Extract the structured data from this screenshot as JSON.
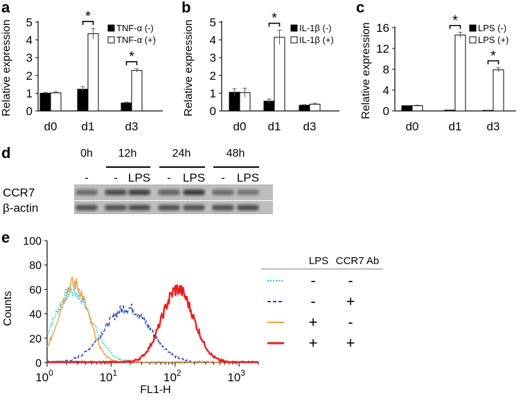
{
  "panels": {
    "a": "a",
    "b": "b",
    "c": "c",
    "d": "d",
    "e": "e"
  },
  "colors": {
    "filled_bar": "#000000",
    "open_bar": "#ffffff",
    "cyan": "#1ec8e6",
    "blue": "#1f3fbf",
    "orange": "#f0a040",
    "red": "#ee1c1c"
  },
  "chart_data": [
    {
      "id": "a",
      "type": "bar",
      "title": "",
      "xlabel": "",
      "ylabel": "Relative expression",
      "ylim": [
        0,
        5
      ],
      "yticks": [
        "0",
        "1",
        "2",
        "3",
        "4",
        "5"
      ],
      "ytick_values": [
        0,
        1,
        2,
        3,
        4,
        5
      ],
      "categories": [
        "d0",
        "d1",
        "d3"
      ],
      "series": [
        {
          "name": "TNF-α (-)",
          "style": "filled",
          "values": [
            1.0,
            1.22,
            0.45
          ],
          "errors": [
            0.04,
            0.15,
            0.05
          ]
        },
        {
          "name": "TNF-α (+)",
          "style": "open",
          "values": [
            1.02,
            4.35,
            2.28
          ],
          "errors": [
            0.05,
            0.3,
            0.1
          ]
        }
      ],
      "significance": [
        {
          "category_index": 1,
          "label": "*"
        },
        {
          "category_index": 2,
          "label": "*"
        }
      ],
      "legend": "top-right"
    },
    {
      "id": "b",
      "type": "bar",
      "title": "",
      "xlabel": "",
      "ylabel": "Relative expression",
      "ylim": [
        0,
        5
      ],
      "yticks": [
        "0",
        "1",
        "2",
        "3",
        "4",
        "5"
      ],
      "ytick_values": [
        0,
        1,
        2,
        3,
        4,
        5
      ],
      "categories": [
        "d0",
        "d1",
        "d3"
      ],
      "series": [
        {
          "name": "IL-1β (-)",
          "style": "filled",
          "values": [
            1.05,
            0.55,
            0.32
          ],
          "errors": [
            0.2,
            0.12,
            0.03
          ]
        },
        {
          "name": "IL-1β (+)",
          "style": "open",
          "values": [
            1.03,
            4.15,
            0.38
          ],
          "errors": [
            0.25,
            0.4,
            0.05
          ]
        }
      ],
      "significance": [
        {
          "category_index": 1,
          "label": "*"
        }
      ],
      "legend": "top-right"
    },
    {
      "id": "c",
      "type": "bar",
      "title": "",
      "xlabel": "",
      "ylabel": "Relative expression",
      "ylim": [
        0,
        16
      ],
      "yticks": [
        "0",
        "4",
        "8",
        "12",
        "16"
      ],
      "ytick_values": [
        0,
        4,
        8,
        12,
        16
      ],
      "categories": [
        "d0",
        "d1",
        "d3"
      ],
      "series": [
        {
          "name": "LPS (-)",
          "style": "filled",
          "values": [
            1.0,
            0.15,
            0.1
          ],
          "errors": [
            0.05,
            0.03,
            0.03
          ]
        },
        {
          "name": "LPS (+)",
          "style": "open",
          "values": [
            1.0,
            14.6,
            7.9
          ],
          "errors": [
            0.1,
            0.5,
            0.4
          ]
        }
      ],
      "significance": [
        {
          "category_index": 1,
          "label": "*"
        },
        {
          "category_index": 2,
          "label": "*"
        }
      ],
      "legend": "top-right"
    },
    {
      "id": "e",
      "type": "line",
      "title": "",
      "xlabel": "FL1-H",
      "ylabel": "Counts",
      "xscale": "log",
      "xlim": [
        1,
        2000
      ],
      "ylim": [
        0,
        100
      ],
      "xtick_base": "10",
      "xtick_exponents": [
        "0",
        "1",
        "2",
        "3"
      ],
      "xtick_values": [
        1,
        10,
        100,
        1000
      ],
      "yticks": [
        "0",
        "20",
        "40",
        "60",
        "80",
        "100"
      ],
      "ytick_values": [
        0,
        20,
        40,
        60,
        80,
        100
      ],
      "series": [
        {
          "name": "cyan dotted",
          "color": "cyan",
          "dash": "dotted",
          "center": 2.5,
          "peak": 58,
          "sigma": 0.3
        },
        {
          "name": "blue dashed",
          "color": "blue",
          "dash": "dashed",
          "center": 18,
          "peak": 45,
          "sigma": 0.36
        },
        {
          "name": "orange",
          "color": "orange",
          "dash": "solid",
          "center": 2.6,
          "peak": 65,
          "sigma": 0.23
        },
        {
          "name": "red",
          "color": "red",
          "dash": "solid",
          "center": 110,
          "peak": 60,
          "sigma": 0.25
        }
      ],
      "legend_table": {
        "headers": [
          "LPS",
          "CCR7 Ab"
        ],
        "rows": [
          {
            "color": "cyan",
            "dash": "dotted",
            "lps": "-",
            "ab": "-"
          },
          {
            "color": "blue",
            "dash": "dashed",
            "lps": "-",
            "ab": "+"
          },
          {
            "color": "orange",
            "dash": "solid",
            "lps": "+",
            "ab": "-"
          },
          {
            "color": "red",
            "dash": "solid",
            "lps": "+",
            "ab": "+"
          }
        ]
      }
    }
  ],
  "western_blot": {
    "times": [
      "0h",
      "12h",
      "24h",
      "48h"
    ],
    "lane_labels": [
      "-",
      "-",
      "LPS",
      "-",
      "LPS",
      "-",
      "LPS"
    ],
    "rows": [
      {
        "label": "CCR7",
        "intensity": [
          0.55,
          0.75,
          0.8,
          0.6,
          0.85,
          0.55,
          0.5
        ]
      },
      {
        "label": "β-actin",
        "intensity": [
          0.7,
          0.7,
          0.72,
          0.7,
          0.7,
          0.7,
          0.72
        ]
      }
    ]
  }
}
